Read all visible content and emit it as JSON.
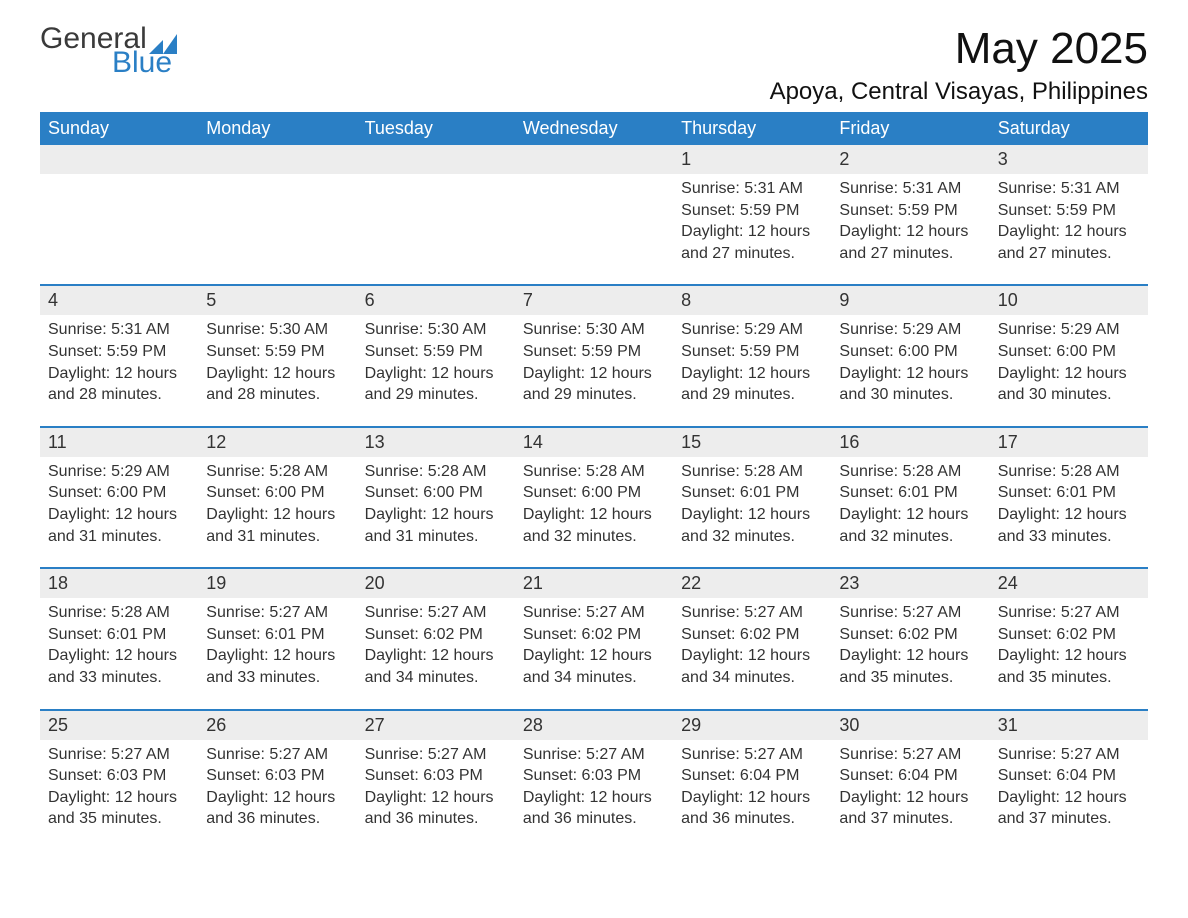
{
  "logo": {
    "word1": "General",
    "word2": "Blue",
    "mark_color": "#2a7fc5",
    "text_color_dark": "#3a3a3a"
  },
  "header": {
    "title": "May 2025",
    "location": "Apoya, Central Visayas, Philippines"
  },
  "theme": {
    "accent": "#2a7fc5",
    "header_text": "#ffffff",
    "daynum_bg": "#ededed",
    "body_text": "#333333",
    "page_bg": "#ffffff"
  },
  "calendar": {
    "day_headers": [
      "Sunday",
      "Monday",
      "Tuesday",
      "Wednesday",
      "Thursday",
      "Friday",
      "Saturday"
    ],
    "weeks": [
      [
        null,
        null,
        null,
        null,
        {
          "day": "1",
          "sunrise": "Sunrise: 5:31 AM",
          "sunset": "Sunset: 5:59 PM",
          "daylight": "Daylight: 12 hours and 27 minutes."
        },
        {
          "day": "2",
          "sunrise": "Sunrise: 5:31 AM",
          "sunset": "Sunset: 5:59 PM",
          "daylight": "Daylight: 12 hours and 27 minutes."
        },
        {
          "day": "3",
          "sunrise": "Sunrise: 5:31 AM",
          "sunset": "Sunset: 5:59 PM",
          "daylight": "Daylight: 12 hours and 27 minutes."
        }
      ],
      [
        {
          "day": "4",
          "sunrise": "Sunrise: 5:31 AM",
          "sunset": "Sunset: 5:59 PM",
          "daylight": "Daylight: 12 hours and 28 minutes."
        },
        {
          "day": "5",
          "sunrise": "Sunrise: 5:30 AM",
          "sunset": "Sunset: 5:59 PM",
          "daylight": "Daylight: 12 hours and 28 minutes."
        },
        {
          "day": "6",
          "sunrise": "Sunrise: 5:30 AM",
          "sunset": "Sunset: 5:59 PM",
          "daylight": "Daylight: 12 hours and 29 minutes."
        },
        {
          "day": "7",
          "sunrise": "Sunrise: 5:30 AM",
          "sunset": "Sunset: 5:59 PM",
          "daylight": "Daylight: 12 hours and 29 minutes."
        },
        {
          "day": "8",
          "sunrise": "Sunrise: 5:29 AM",
          "sunset": "Sunset: 5:59 PM",
          "daylight": "Daylight: 12 hours and 29 minutes."
        },
        {
          "day": "9",
          "sunrise": "Sunrise: 5:29 AM",
          "sunset": "Sunset: 6:00 PM",
          "daylight": "Daylight: 12 hours and 30 minutes."
        },
        {
          "day": "10",
          "sunrise": "Sunrise: 5:29 AM",
          "sunset": "Sunset: 6:00 PM",
          "daylight": "Daylight: 12 hours and 30 minutes."
        }
      ],
      [
        {
          "day": "11",
          "sunrise": "Sunrise: 5:29 AM",
          "sunset": "Sunset: 6:00 PM",
          "daylight": "Daylight: 12 hours and 31 minutes."
        },
        {
          "day": "12",
          "sunrise": "Sunrise: 5:28 AM",
          "sunset": "Sunset: 6:00 PM",
          "daylight": "Daylight: 12 hours and 31 minutes."
        },
        {
          "day": "13",
          "sunrise": "Sunrise: 5:28 AM",
          "sunset": "Sunset: 6:00 PM",
          "daylight": "Daylight: 12 hours and 31 minutes."
        },
        {
          "day": "14",
          "sunrise": "Sunrise: 5:28 AM",
          "sunset": "Sunset: 6:00 PM",
          "daylight": "Daylight: 12 hours and 32 minutes."
        },
        {
          "day": "15",
          "sunrise": "Sunrise: 5:28 AM",
          "sunset": "Sunset: 6:01 PM",
          "daylight": "Daylight: 12 hours and 32 minutes."
        },
        {
          "day": "16",
          "sunrise": "Sunrise: 5:28 AM",
          "sunset": "Sunset: 6:01 PM",
          "daylight": "Daylight: 12 hours and 32 minutes."
        },
        {
          "day": "17",
          "sunrise": "Sunrise: 5:28 AM",
          "sunset": "Sunset: 6:01 PM",
          "daylight": "Daylight: 12 hours and 33 minutes."
        }
      ],
      [
        {
          "day": "18",
          "sunrise": "Sunrise: 5:28 AM",
          "sunset": "Sunset: 6:01 PM",
          "daylight": "Daylight: 12 hours and 33 minutes."
        },
        {
          "day": "19",
          "sunrise": "Sunrise: 5:27 AM",
          "sunset": "Sunset: 6:01 PM",
          "daylight": "Daylight: 12 hours and 33 minutes."
        },
        {
          "day": "20",
          "sunrise": "Sunrise: 5:27 AM",
          "sunset": "Sunset: 6:02 PM",
          "daylight": "Daylight: 12 hours and 34 minutes."
        },
        {
          "day": "21",
          "sunrise": "Sunrise: 5:27 AM",
          "sunset": "Sunset: 6:02 PM",
          "daylight": "Daylight: 12 hours and 34 minutes."
        },
        {
          "day": "22",
          "sunrise": "Sunrise: 5:27 AM",
          "sunset": "Sunset: 6:02 PM",
          "daylight": "Daylight: 12 hours and 34 minutes."
        },
        {
          "day": "23",
          "sunrise": "Sunrise: 5:27 AM",
          "sunset": "Sunset: 6:02 PM",
          "daylight": "Daylight: 12 hours and 35 minutes."
        },
        {
          "day": "24",
          "sunrise": "Sunrise: 5:27 AM",
          "sunset": "Sunset: 6:02 PM",
          "daylight": "Daylight: 12 hours and 35 minutes."
        }
      ],
      [
        {
          "day": "25",
          "sunrise": "Sunrise: 5:27 AM",
          "sunset": "Sunset: 6:03 PM",
          "daylight": "Daylight: 12 hours and 35 minutes."
        },
        {
          "day": "26",
          "sunrise": "Sunrise: 5:27 AM",
          "sunset": "Sunset: 6:03 PM",
          "daylight": "Daylight: 12 hours and 36 minutes."
        },
        {
          "day": "27",
          "sunrise": "Sunrise: 5:27 AM",
          "sunset": "Sunset: 6:03 PM",
          "daylight": "Daylight: 12 hours and 36 minutes."
        },
        {
          "day": "28",
          "sunrise": "Sunrise: 5:27 AM",
          "sunset": "Sunset: 6:03 PM",
          "daylight": "Daylight: 12 hours and 36 minutes."
        },
        {
          "day": "29",
          "sunrise": "Sunrise: 5:27 AM",
          "sunset": "Sunset: 6:04 PM",
          "daylight": "Daylight: 12 hours and 36 minutes."
        },
        {
          "day": "30",
          "sunrise": "Sunrise: 5:27 AM",
          "sunset": "Sunset: 6:04 PM",
          "daylight": "Daylight: 12 hours and 37 minutes."
        },
        {
          "day": "31",
          "sunrise": "Sunrise: 5:27 AM",
          "sunset": "Sunset: 6:04 PM",
          "daylight": "Daylight: 12 hours and 37 minutes."
        }
      ]
    ]
  }
}
